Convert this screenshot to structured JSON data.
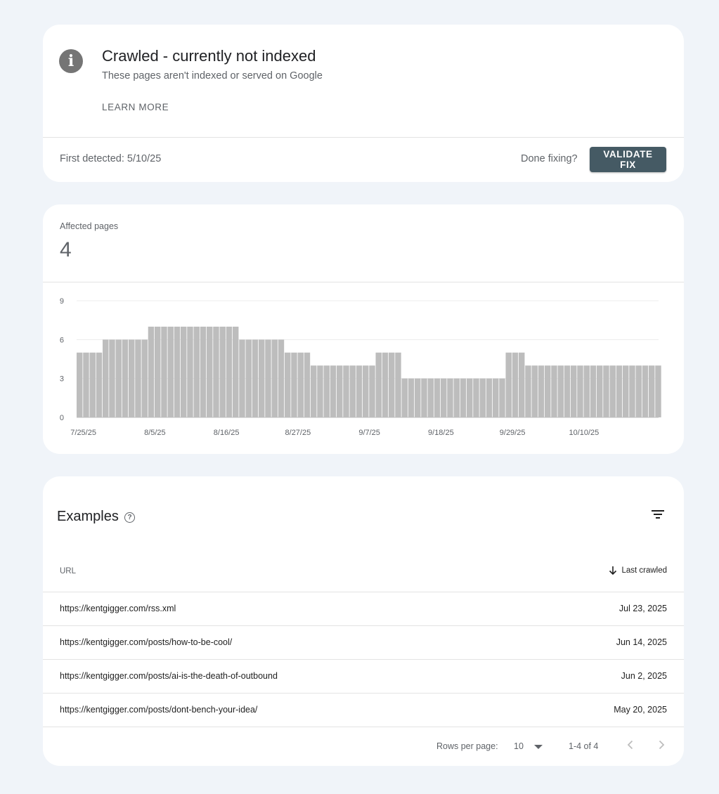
{
  "issue": {
    "title": "Crawled - currently not indexed",
    "subtitle": "These pages aren't indexed or served on Google",
    "learn_more": "LEARN MORE",
    "first_detected": "First detected: 5/10/25",
    "done_fixing": "Done fixing?",
    "validate_label": "VALIDATE FIX",
    "info_glyph": "i"
  },
  "affected": {
    "label": "Affected pages",
    "value": "4"
  },
  "chart_data": {
    "type": "bar",
    "ylim": [
      0,
      9
    ],
    "yticks": [
      0,
      3,
      6,
      9
    ],
    "grid": true,
    "xtick_labels": [
      "7/25/25",
      "8/5/25",
      "8/16/25",
      "8/27/25",
      "9/7/25",
      "9/18/25",
      "9/29/25",
      "10/10/25"
    ],
    "xtick_every": 11,
    "values": [
      5,
      5,
      5,
      5,
      6,
      6,
      6,
      6,
      6,
      6,
      6,
      7,
      7,
      7,
      7,
      7,
      7,
      7,
      7,
      7,
      7,
      7,
      7,
      7,
      7,
      6,
      6,
      6,
      6,
      6,
      6,
      6,
      5,
      5,
      5,
      5,
      4,
      4,
      4,
      4,
      4,
      4,
      4,
      4,
      4,
      4,
      5,
      5,
      5,
      5,
      3,
      3,
      3,
      3,
      3,
      3,
      3,
      3,
      3,
      3,
      3,
      3,
      3,
      3,
      3,
      3,
      5,
      5,
      5,
      4,
      4,
      4,
      4,
      4,
      4,
      4,
      4,
      4,
      4,
      4,
      4,
      4,
      4,
      4,
      4,
      4,
      4,
      4,
      4,
      4
    ],
    "bar_color": "#bdbdbd"
  },
  "examples": {
    "title": "Examples",
    "help_glyph": "?",
    "col_url": "URL",
    "col_crawled": "Last crawled",
    "rows": [
      {
        "url": "https://kentgigger.com/rss.xml",
        "date": "Jul 23, 2025"
      },
      {
        "url": "https://kentgigger.com/posts/how-to-be-cool/",
        "date": "Jun 14, 2025"
      },
      {
        "url": "https://kentgigger.com/posts/ai-is-the-death-of-outbound",
        "date": "Jun 2, 2025"
      },
      {
        "url": "https://kentgigger.com/posts/dont-bench-your-idea/",
        "date": "May 20, 2025"
      }
    ],
    "rows_per_page_label": "Rows per page:",
    "rows_per_page": "10",
    "range": "1-4 of 4"
  },
  "icons": {
    "info": "info-icon",
    "help": "help-icon",
    "filter": "filter-icon",
    "sort": "arrow-down-icon",
    "caret": "caret-down-icon",
    "prev": "chevron-left-icon",
    "next": "chevron-right-icon"
  },
  "colors": {
    "background": "#f0f4f9",
    "validate_button": "#455a64",
    "bars": "#bdbdbd"
  }
}
